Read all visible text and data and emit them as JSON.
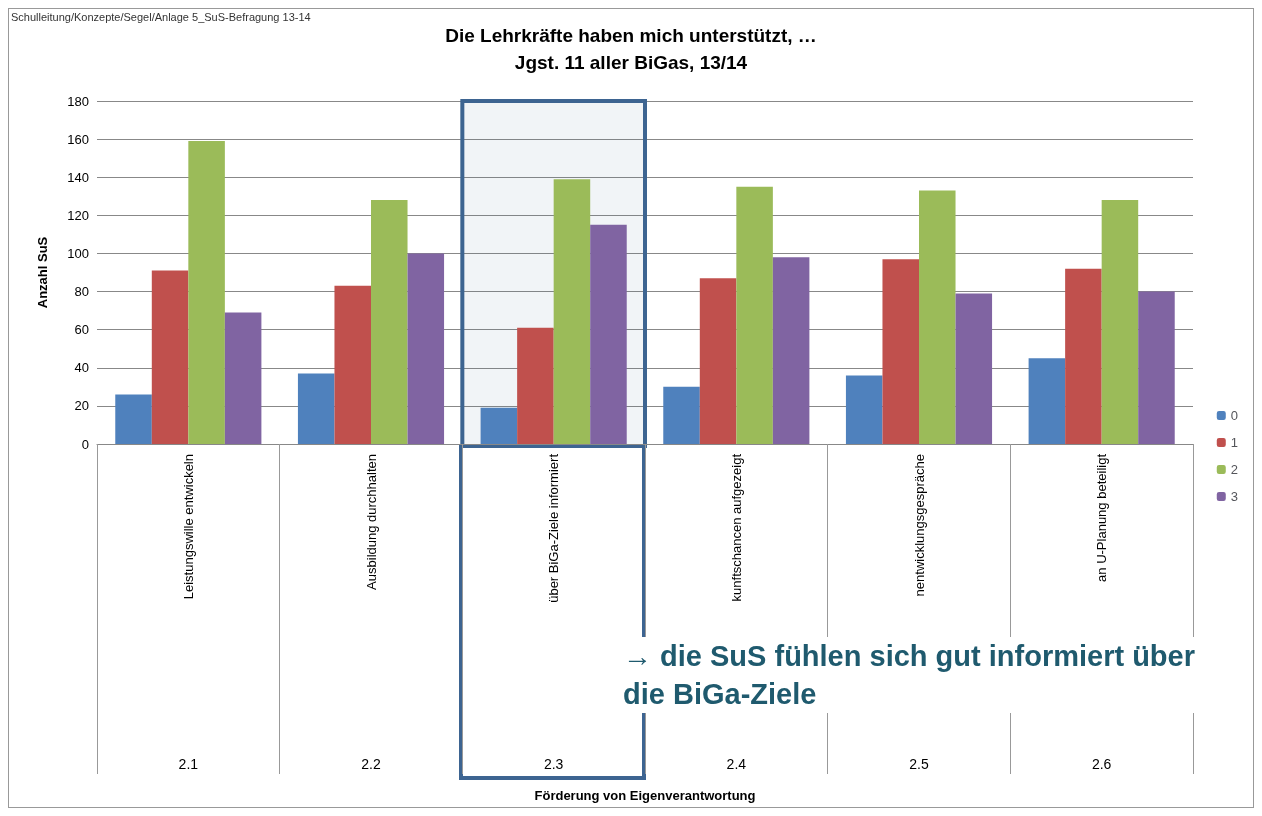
{
  "chart_data": {
    "type": "bar",
    "title": "Die Lehrkräfte haben mich unterstützt, …",
    "subtitle": "Jgst. 11 aller BiGas, 13/14",
    "ylabel": "Anzahl SuS",
    "categories": [
      "Leistungswille entwickeln",
      "Ausbildung durchhalten",
      "über BiGa-Ziele informiert",
      "kunftschancen aufgezeigt",
      "nentwicklungsgespräche",
      "an U-Planung beteiligt"
    ],
    "series": [
      {
        "name": "0",
        "color": "#4f81bd",
        "values": [
          26,
          37,
          19,
          30,
          36,
          45
        ]
      },
      {
        "name": "1",
        "color": "#c0504d",
        "values": [
          91,
          83,
          61,
          87,
          97,
          92
        ]
      },
      {
        "name": "2",
        "color": "#9bbb59",
        "values": [
          159,
          128,
          139,
          135,
          133,
          128
        ]
      },
      {
        "name": "3",
        "color": "#8064a2",
        "values": [
          69,
          100,
          115,
          98,
          79,
          80
        ]
      }
    ],
    "ylim": [
      0,
      180
    ],
    "yticks": [
      0,
      20,
      40,
      60,
      80,
      100,
      120,
      140,
      160,
      180
    ],
    "grid": "y",
    "legend": "right",
    "bands": [
      {
        "axis": "x",
        "from": "über BiGa-Ziele informiert",
        "to": "über BiGa-Ziele informiert",
        "color": "#3d6491"
      }
    ],
    "annotations": [
      "Schulleitung/Konzepte/Segel/Anlage 5_SuS-Befragung 13-14",
      "→ die SuS fühlen sich gut informiert über\ndie BiGa-Ziele",
      "Förderung von Eigenverantwortung",
      "2.1",
      "2.2",
      "2.3",
      "2.4",
      "2.5",
      "2.6"
    ]
  }
}
